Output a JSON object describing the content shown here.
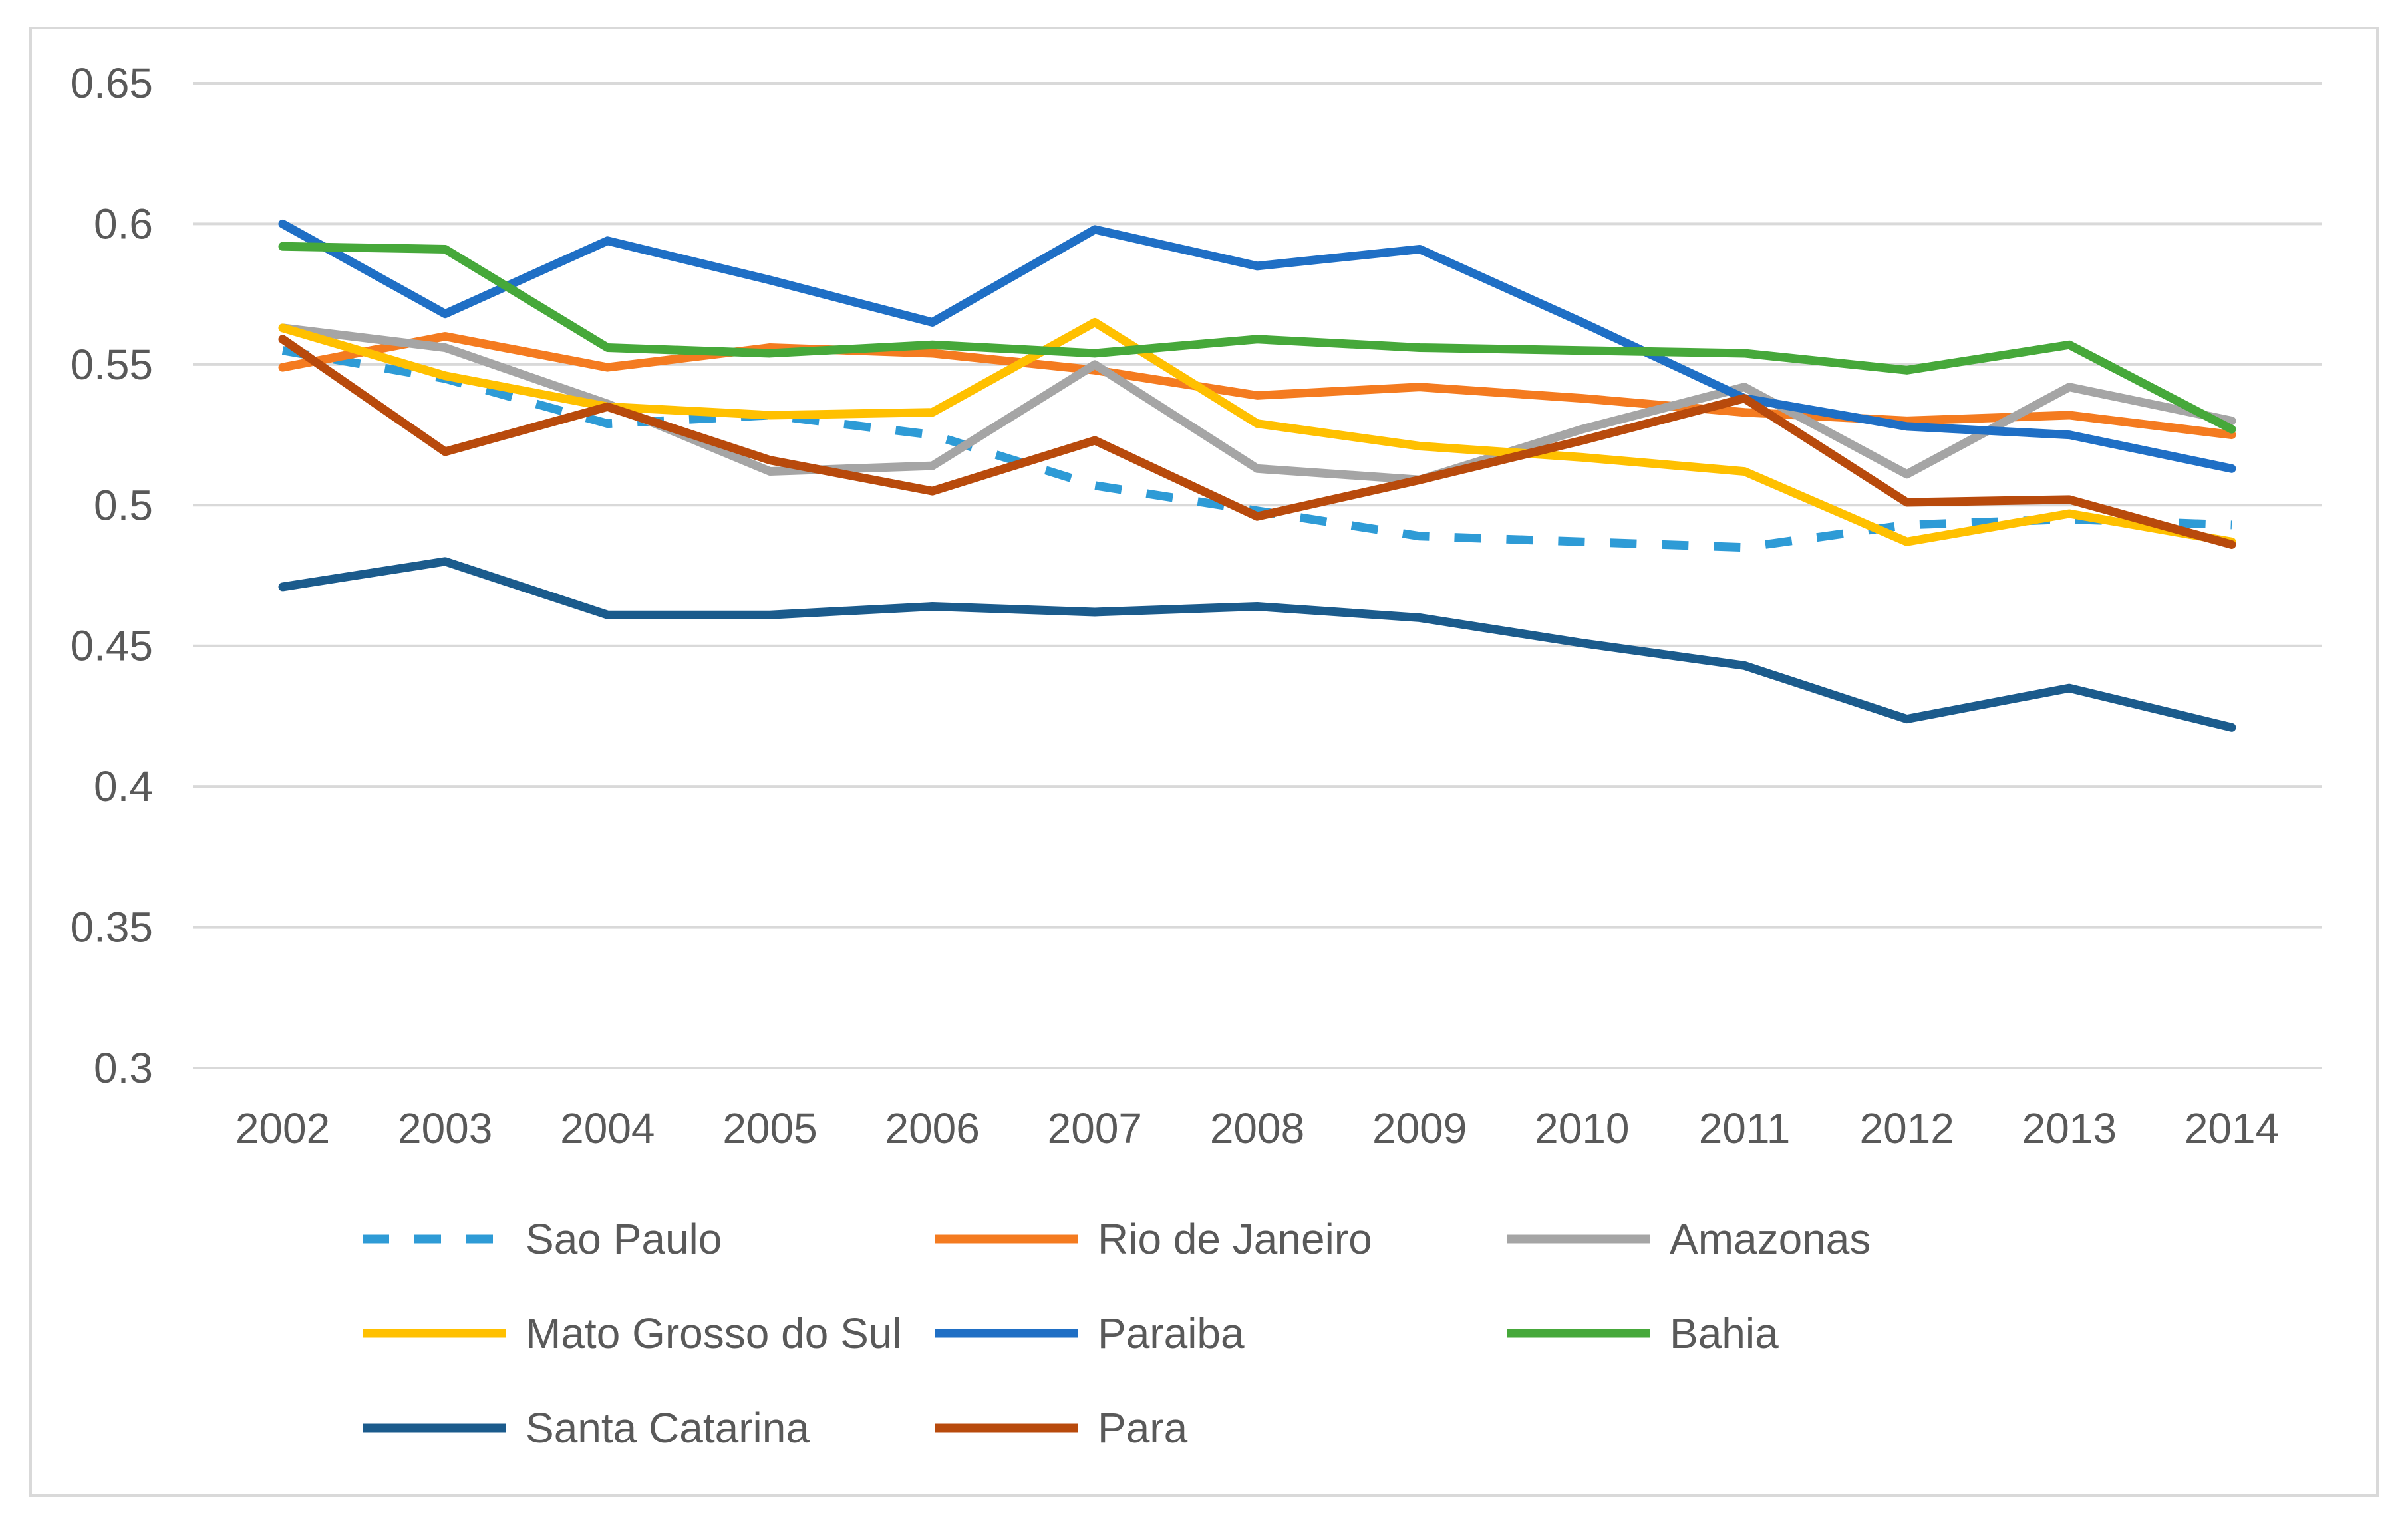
{
  "chart_data": {
    "type": "line",
    "title": "",
    "xlabel": "",
    "ylabel": "",
    "categories": [
      "2002",
      "2003",
      "2004",
      "2005",
      "2006",
      "2007",
      "2008",
      "2009",
      "2010",
      "2011",
      "2012",
      "2013",
      "2014"
    ],
    "ylim": [
      0.3,
      0.65
    ],
    "yticks": [
      0.3,
      0.35,
      0.4,
      0.45,
      0.5,
      0.55,
      0.6,
      0.65
    ],
    "ytick_labels": [
      "0.3",
      "0.35",
      "0.4",
      "0.45",
      "0.5",
      "0.55",
      "0.6",
      "0.65"
    ],
    "grid": true,
    "legend_position": "bottom",
    "series": [
      {
        "name": "Sao Paulo",
        "color": "#2E9BD6",
        "dashed": true,
        "values": [
          0.555,
          0.545,
          0.529,
          0.532,
          0.525,
          0.507,
          0.498,
          0.489,
          0.487,
          0.485,
          0.493,
          0.495,
          0.493
        ]
      },
      {
        "name": "Rio de Janeiro",
        "color": "#F47B20",
        "dashed": false,
        "values": [
          0.549,
          0.56,
          0.549,
          0.556,
          0.554,
          0.548,
          0.539,
          0.542,
          0.538,
          0.533,
          0.53,
          0.532,
          0.525
        ]
      },
      {
        "name": "Amazonas",
        "color": "#A5A5A5",
        "dashed": false,
        "values": [
          0.563,
          0.556,
          0.536,
          0.512,
          0.514,
          0.55,
          0.513,
          0.509,
          0.527,
          0.542,
          0.511,
          0.542,
          0.53
        ]
      },
      {
        "name": "Mato Grosso do Sul",
        "color": "#FFC000",
        "dashed": false,
        "values": [
          0.563,
          0.546,
          0.535,
          0.532,
          0.533,
          0.565,
          0.529,
          0.521,
          0.517,
          0.512,
          0.487,
          0.497,
          0.487
        ]
      },
      {
        "name": "Paraiba",
        "color": "#1F6FC5",
        "dashed": false,
        "values": [
          0.6,
          0.568,
          0.594,
          0.58,
          0.565,
          0.598,
          0.585,
          0.591,
          0.565,
          0.538,
          0.528,
          0.525,
          0.513
        ]
      },
      {
        "name": "Bahia",
        "color": "#46A83A",
        "dashed": false,
        "values": [
          0.592,
          0.591,
          0.556,
          0.554,
          0.557,
          0.554,
          0.559,
          0.556,
          0.555,
          0.554,
          0.548,
          0.557,
          0.527
        ]
      },
      {
        "name": "Santa Catarina",
        "color": "#1B5B8C",
        "dashed": false,
        "values": [
          0.471,
          0.48,
          0.461,
          0.461,
          0.464,
          0.462,
          0.464,
          0.46,
          0.451,
          0.443,
          0.424,
          0.435,
          0.421
        ]
      },
      {
        "name": "Para",
        "color": "#B84A0C",
        "dashed": false,
        "values": [
          0.559,
          0.519,
          0.535,
          0.516,
          0.505,
          0.523,
          0.496,
          0.509,
          0.523,
          0.538,
          0.501,
          0.502,
          0.486
        ]
      }
    ]
  }
}
